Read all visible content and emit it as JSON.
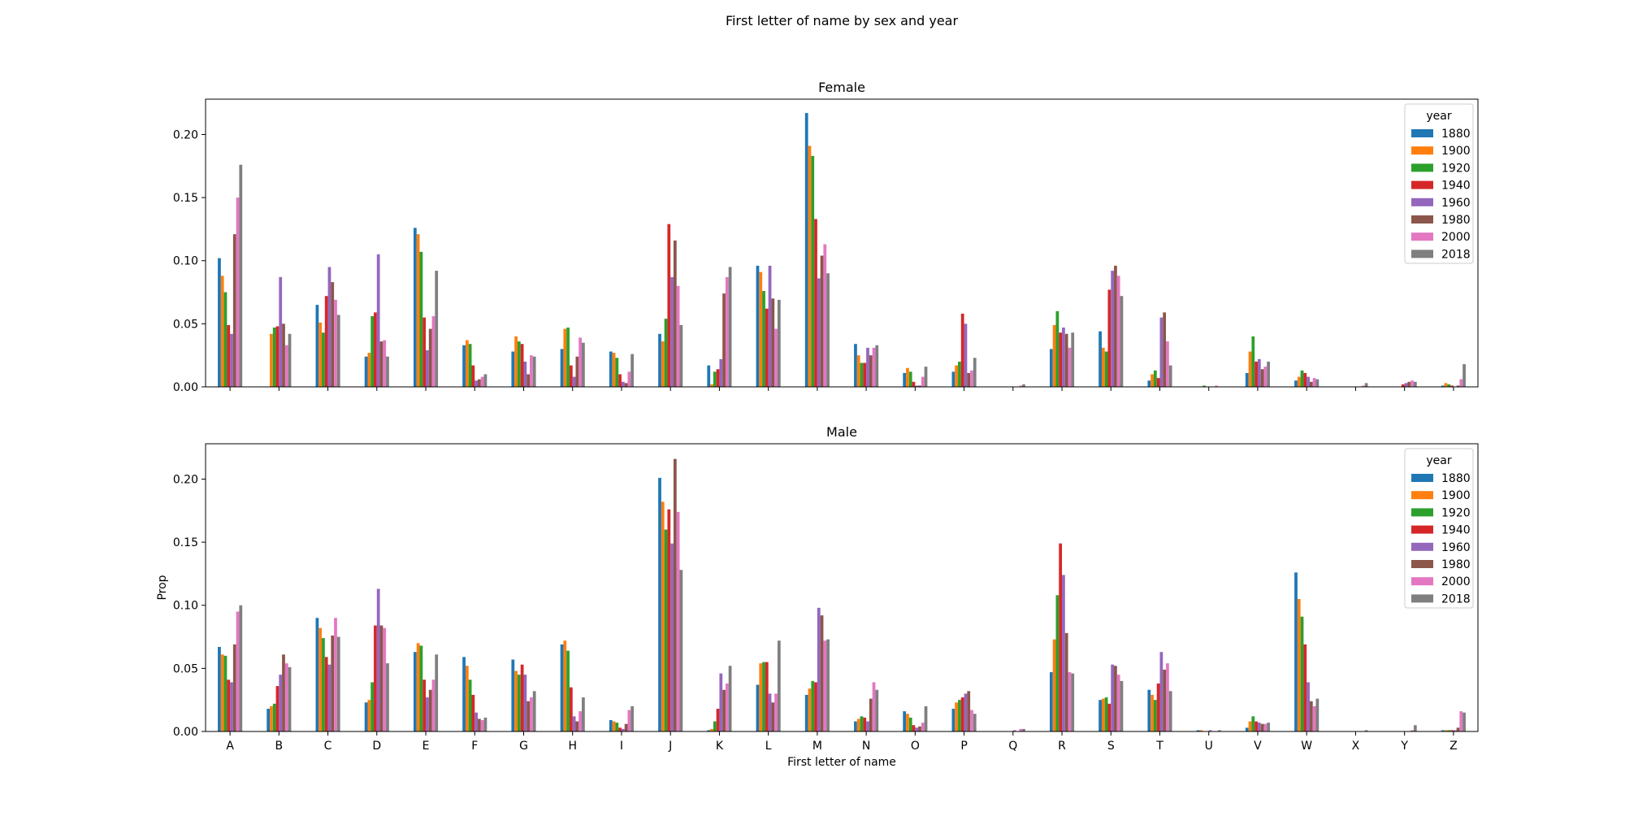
{
  "figure": {
    "suptitle": "First letter of name by sex and year"
  },
  "chart_data": [
    {
      "type": "bar",
      "title": "Female",
      "xlabel": "",
      "ylabel": "",
      "ylim": [
        0,
        0.228
      ],
      "yticks": [
        "0.00",
        "0.05",
        "0.10",
        "0.15",
        "0.20"
      ],
      "ytick_values": [
        0,
        0.05,
        0.1,
        0.15,
        0.2
      ],
      "show_xticklabels": false,
      "legend": {
        "title": "year",
        "position": "top-right"
      },
      "categories": [
        "A",
        "B",
        "C",
        "D",
        "E",
        "F",
        "G",
        "H",
        "I",
        "J",
        "K",
        "L",
        "M",
        "N",
        "O",
        "P",
        "Q",
        "R",
        "S",
        "T",
        "U",
        "V",
        "W",
        "X",
        "Y",
        "Z"
      ],
      "series": [
        {
          "name": "1880",
          "color": "#1f77b4",
          "values": [
            0.102,
            0.0,
            0.065,
            0.024,
            0.126,
            0.033,
            0.028,
            0.03,
            0.028,
            0.042,
            0.017,
            0.096,
            0.217,
            0.034,
            0.011,
            0.012,
            0.0,
            0.03,
            0.044,
            0.005,
            0.0,
            0.011,
            0.005,
            0.0,
            0.0,
            0.001
          ]
        },
        {
          "name": "1900",
          "color": "#ff7f0e",
          "values": [
            0.088,
            0.042,
            0.051,
            0.027,
            0.121,
            0.037,
            0.04,
            0.046,
            0.027,
            0.036,
            0.002,
            0.091,
            0.191,
            0.025,
            0.015,
            0.017,
            0.0,
            0.049,
            0.031,
            0.01,
            0.0,
            0.028,
            0.008,
            0.0,
            0.0,
            0.003
          ]
        },
        {
          "name": "1920",
          "color": "#2ca02c",
          "values": [
            0.075,
            0.047,
            0.043,
            0.056,
            0.107,
            0.034,
            0.036,
            0.047,
            0.023,
            0.054,
            0.012,
            0.076,
            0.183,
            0.019,
            0.012,
            0.02,
            0.0,
            0.06,
            0.028,
            0.013,
            0.001,
            0.04,
            0.013,
            0.0,
            0.0,
            0.002
          ]
        },
        {
          "name": "1940",
          "color": "#d62728",
          "values": [
            0.049,
            0.048,
            0.072,
            0.059,
            0.055,
            0.017,
            0.034,
            0.017,
            0.01,
            0.129,
            0.014,
            0.062,
            0.133,
            0.019,
            0.004,
            0.058,
            0.0,
            0.043,
            0.077,
            0.007,
            0.0,
            0.02,
            0.011,
            0.0,
            0.002,
            0.001
          ]
        },
        {
          "name": "1960",
          "color": "#9467bd",
          "values": [
            0.042,
            0.087,
            0.095,
            0.105,
            0.029,
            0.005,
            0.02,
            0.008,
            0.004,
            0.087,
            0.022,
            0.096,
            0.086,
            0.031,
            0.001,
            0.05,
            0.0,
            0.047,
            0.092,
            0.055,
            0.0,
            0.022,
            0.008,
            0.0,
            0.003,
            0.0
          ]
        },
        {
          "name": "1980",
          "color": "#8c564b",
          "values": [
            0.121,
            0.05,
            0.083,
            0.036,
            0.046,
            0.006,
            0.01,
            0.024,
            0.003,
            0.116,
            0.074,
            0.07,
            0.104,
            0.025,
            0.001,
            0.011,
            0.0,
            0.042,
            0.096,
            0.059,
            0.0,
            0.014,
            0.004,
            0.0,
            0.004,
            0.001
          ]
        },
        {
          "name": "2000",
          "color": "#e377c2",
          "values": [
            0.15,
            0.033,
            0.069,
            0.037,
            0.056,
            0.008,
            0.025,
            0.039,
            0.012,
            0.08,
            0.087,
            0.046,
            0.113,
            0.031,
            0.008,
            0.013,
            0.001,
            0.031,
            0.088,
            0.036,
            0.001,
            0.016,
            0.007,
            0.001,
            0.005,
            0.006
          ]
        },
        {
          "name": "2018",
          "color": "#7f7f7f",
          "values": [
            0.176,
            0.042,
            0.057,
            0.024,
            0.092,
            0.01,
            0.024,
            0.035,
            0.026,
            0.049,
            0.095,
            0.069,
            0.09,
            0.033,
            0.016,
            0.023,
            0.002,
            0.043,
            0.072,
            0.017,
            0.0,
            0.02,
            0.006,
            0.003,
            0.004,
            0.018
          ]
        }
      ]
    },
    {
      "type": "bar",
      "title": "Male",
      "xlabel": "First letter of name",
      "ylabel": "Prop",
      "ylim": [
        0,
        0.228
      ],
      "yticks": [
        "0.00",
        "0.05",
        "0.10",
        "0.15",
        "0.20"
      ],
      "ytick_values": [
        0,
        0.05,
        0.1,
        0.15,
        0.2
      ],
      "show_xticklabels": true,
      "legend": {
        "title": "year",
        "position": "top-right"
      },
      "categories": [
        "A",
        "B",
        "C",
        "D",
        "E",
        "F",
        "G",
        "H",
        "I",
        "J",
        "K",
        "L",
        "M",
        "N",
        "O",
        "P",
        "Q",
        "R",
        "S",
        "T",
        "U",
        "V",
        "W",
        "X",
        "Y",
        "Z"
      ],
      "series": [
        {
          "name": "1880",
          "color": "#1f77b4",
          "values": [
            0.067,
            0.018,
            0.09,
            0.023,
            0.063,
            0.059,
            0.057,
            0.069,
            0.009,
            0.201,
            0.001,
            0.037,
            0.029,
            0.008,
            0.016,
            0.018,
            0.0,
            0.047,
            0.025,
            0.033,
            0.001,
            0.003,
            0.126,
            0.0,
            0.0,
            0.001
          ]
        },
        {
          "name": "1900",
          "color": "#ff7f0e",
          "values": [
            0.061,
            0.02,
            0.082,
            0.025,
            0.07,
            0.052,
            0.048,
            0.072,
            0.008,
            0.182,
            0.002,
            0.054,
            0.034,
            0.01,
            0.014,
            0.023,
            0.0,
            0.073,
            0.026,
            0.029,
            0.001,
            0.008,
            0.105,
            0.0,
            0.0,
            0.001
          ]
        },
        {
          "name": "1920",
          "color": "#2ca02c",
          "values": [
            0.06,
            0.022,
            0.074,
            0.039,
            0.068,
            0.041,
            0.045,
            0.064,
            0.007,
            0.16,
            0.008,
            0.055,
            0.04,
            0.012,
            0.011,
            0.025,
            0.0,
            0.108,
            0.027,
            0.025,
            0.0,
            0.012,
            0.091,
            0.0,
            0.0,
            0.001
          ]
        },
        {
          "name": "1940",
          "color": "#d62728",
          "values": [
            0.041,
            0.036,
            0.059,
            0.084,
            0.041,
            0.029,
            0.053,
            0.035,
            0.003,
            0.176,
            0.018,
            0.055,
            0.039,
            0.011,
            0.005,
            0.027,
            0.0,
            0.149,
            0.022,
            0.038,
            0.0,
            0.008,
            0.069,
            0.0,
            0.0,
            0.001
          ]
        },
        {
          "name": "1960",
          "color": "#9467bd",
          "values": [
            0.039,
            0.045,
            0.053,
            0.113,
            0.027,
            0.015,
            0.045,
            0.012,
            0.002,
            0.149,
            0.046,
            0.03,
            0.098,
            0.008,
            0.003,
            0.03,
            0.001,
            0.124,
            0.053,
            0.063,
            0.001,
            0.007,
            0.039,
            0.0,
            0.0,
            0.001
          ]
        },
        {
          "name": "1980",
          "color": "#8c564b",
          "values": [
            0.069,
            0.061,
            0.076,
            0.084,
            0.033,
            0.01,
            0.024,
            0.008,
            0.006,
            0.216,
            0.033,
            0.023,
            0.092,
            0.026,
            0.004,
            0.032,
            0.0,
            0.078,
            0.052,
            0.049,
            0.0,
            0.006,
            0.024,
            0.0,
            0.0,
            0.003
          ]
        },
        {
          "name": "2000",
          "color": "#e377c2",
          "values": [
            0.095,
            0.054,
            0.09,
            0.082,
            0.041,
            0.009,
            0.027,
            0.016,
            0.017,
            0.174,
            0.038,
            0.03,
            0.072,
            0.039,
            0.007,
            0.017,
            0.002,
            0.047,
            0.045,
            0.054,
            0.0,
            0.006,
            0.02,
            0.0,
            0.001,
            0.016
          ]
        },
        {
          "name": "2018",
          "color": "#7f7f7f",
          "values": [
            0.1,
            0.051,
            0.075,
            0.054,
            0.061,
            0.011,
            0.032,
            0.027,
            0.02,
            0.128,
            0.052,
            0.072,
            0.073,
            0.033,
            0.02,
            0.014,
            0.002,
            0.046,
            0.04,
            0.032,
            0.001,
            0.007,
            0.026,
            0.001,
            0.005,
            0.015
          ]
        }
      ]
    }
  ]
}
